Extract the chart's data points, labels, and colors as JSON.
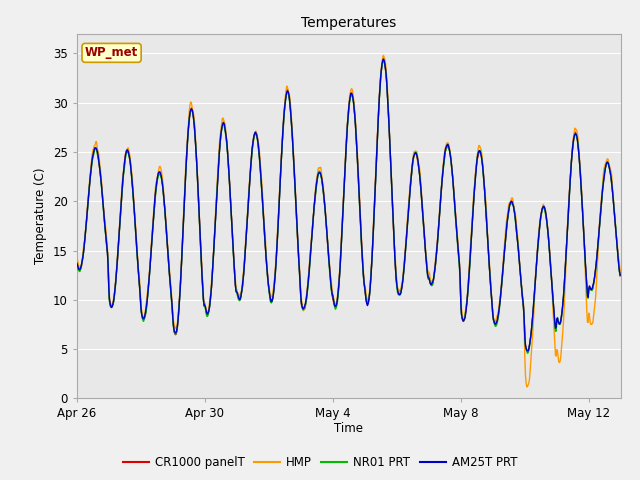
{
  "title": "Temperatures",
  "xlabel": "Time",
  "ylabel": "Temperature (C)",
  "ylim": [
    0,
    37
  ],
  "yticks": [
    0,
    5,
    10,
    15,
    20,
    25,
    30,
    35
  ],
  "fig_bg_color": "#f0f0f0",
  "plot_bg_color": "#e8e8e8",
  "annotation_text": "WP_met",
  "annotation_bg": "#ffffcc",
  "annotation_border": "#cc9900",
  "annotation_text_color": "#990000",
  "cr1000_color": "#dd0000",
  "hmp_color": "#ff9900",
  "nr01_color": "#00bb00",
  "am25t_color": "#0000cc",
  "xtick_labels": [
    "Apr 26",
    "Apr 30",
    "May 4",
    "May 8",
    "May 12"
  ],
  "xtick_positions": [
    0,
    4,
    8,
    12,
    16
  ],
  "grid_color": "#ffffff",
  "spine_color": "#aaaaaa",
  "legend_labels": [
    "CR1000 panelT",
    "HMP",
    "NR01 PRT",
    "AM25T PRT"
  ]
}
